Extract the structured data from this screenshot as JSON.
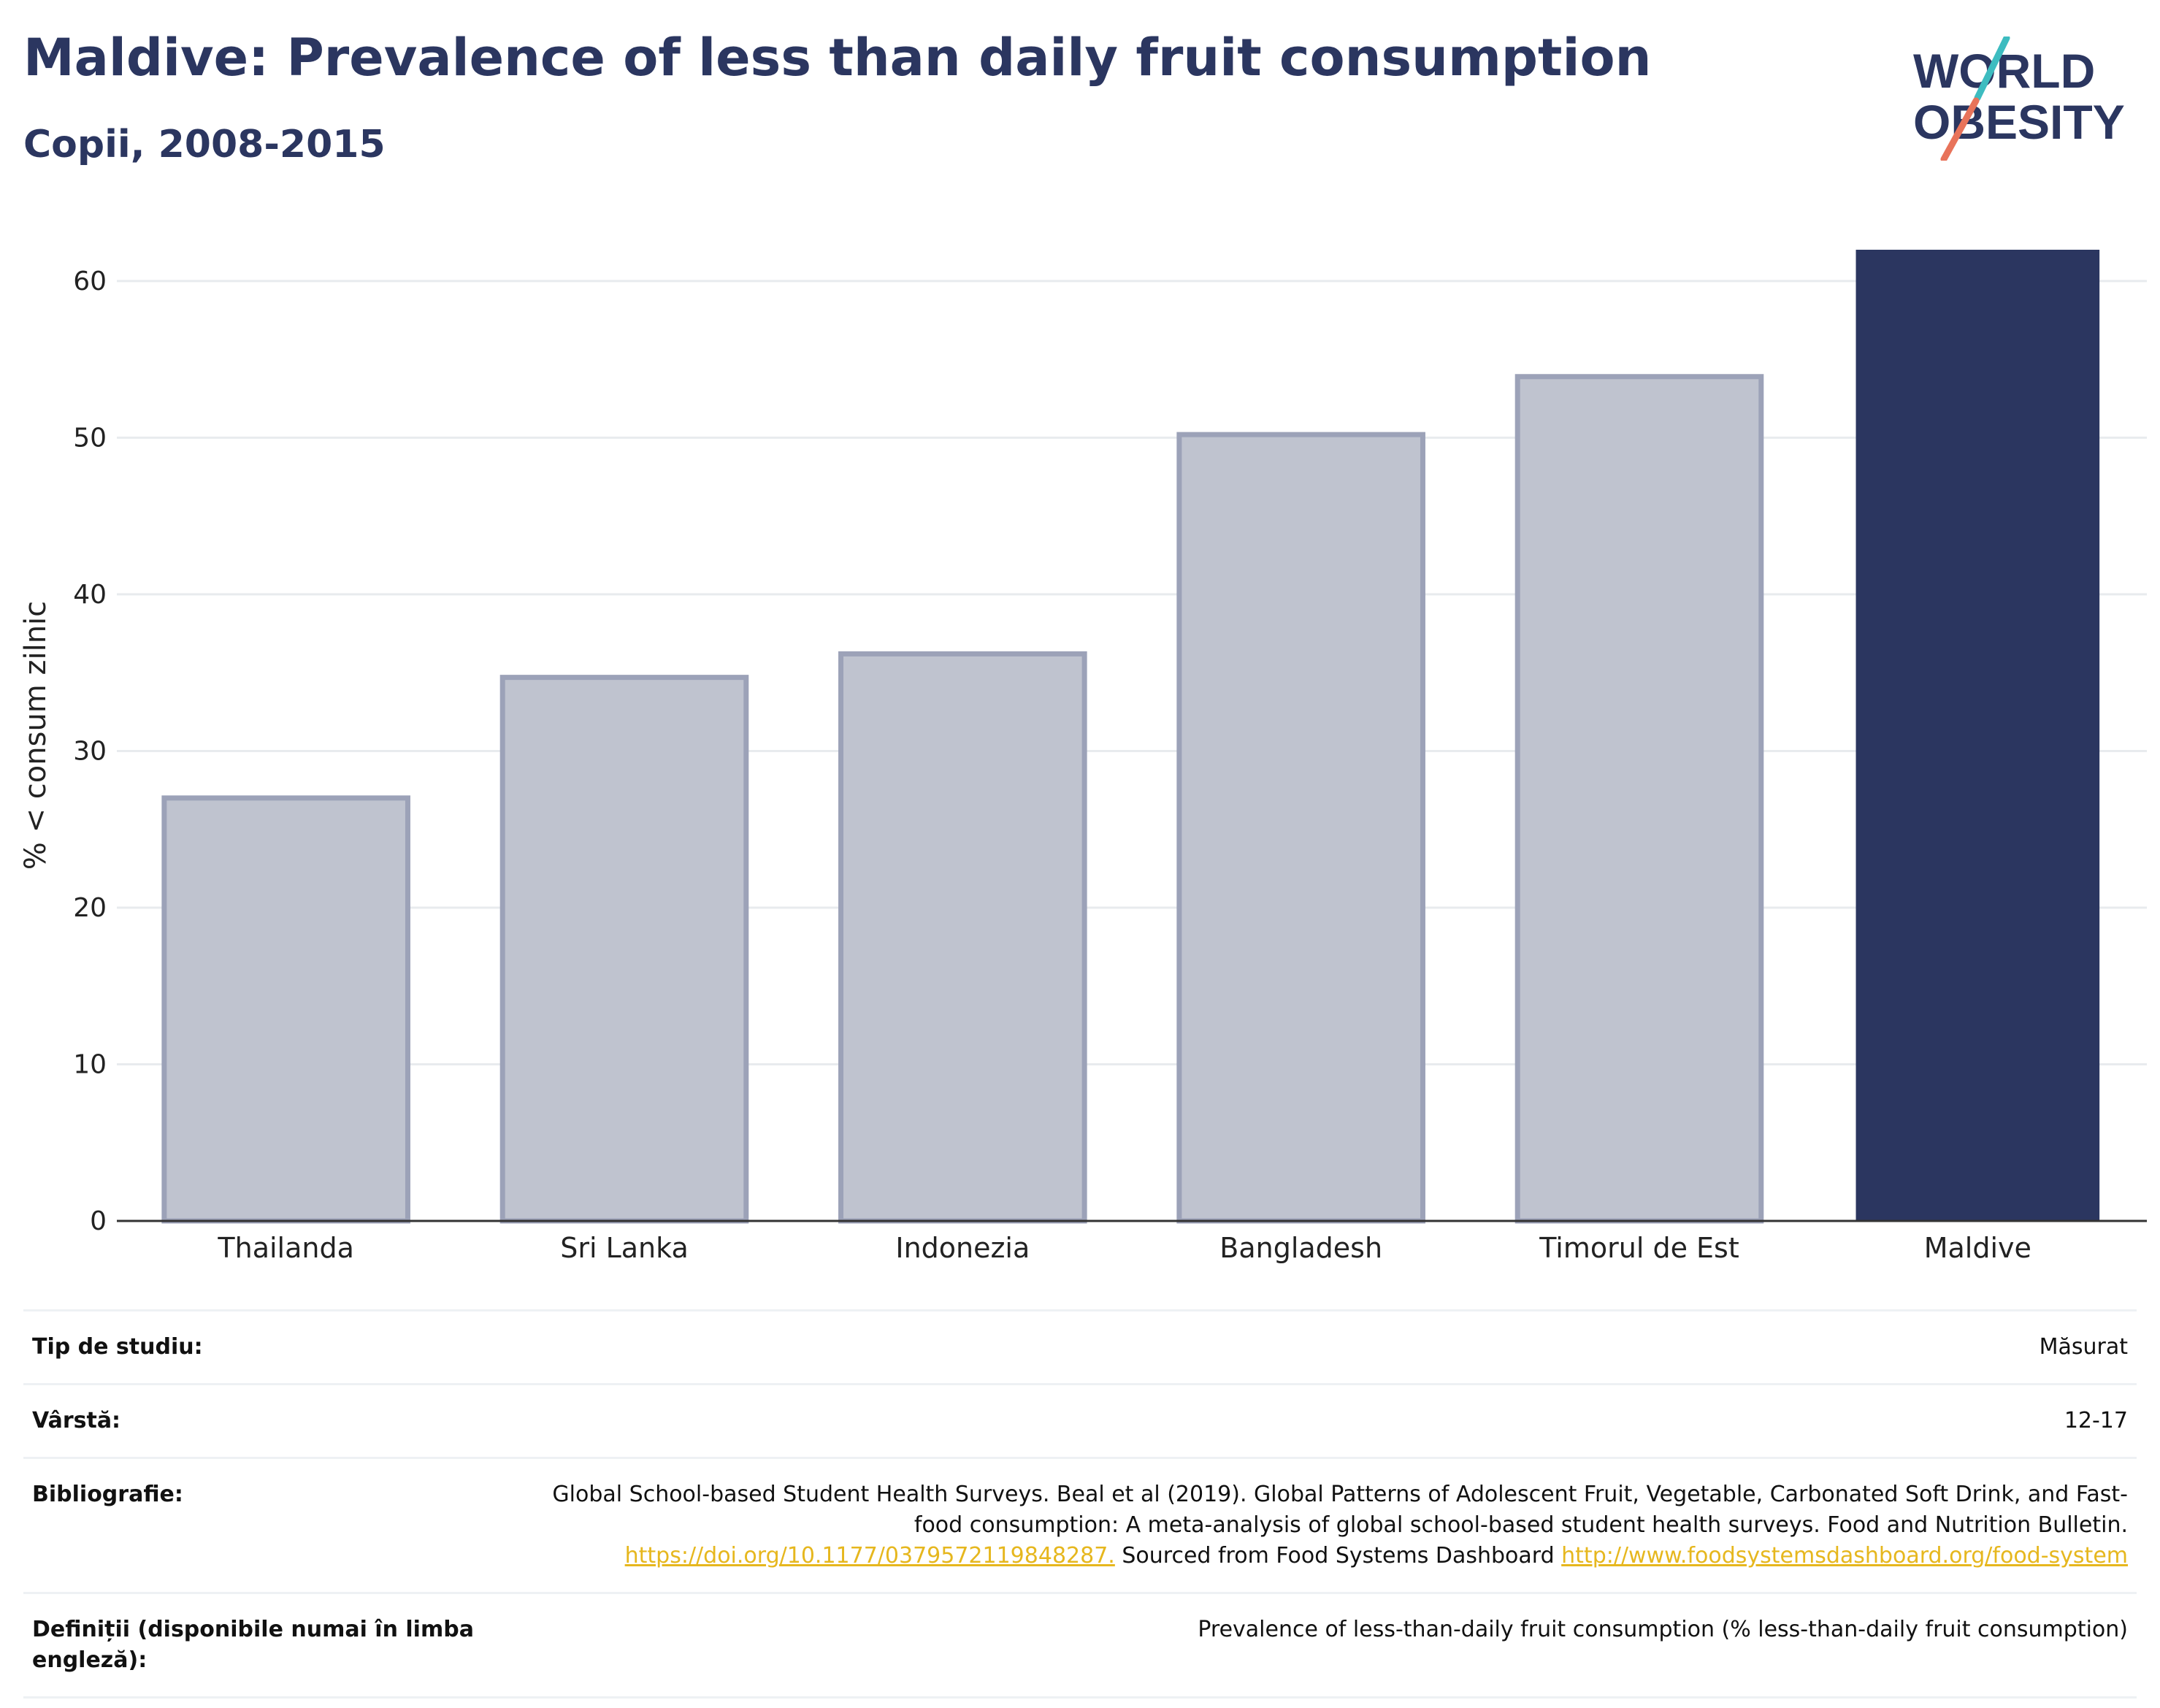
{
  "header": {
    "title": "Maldive: Prevalence of less than daily fruit consumption",
    "subtitle": "Copii, 2008-2015"
  },
  "logo": {
    "text_line1": "WORLD",
    "text_line2": "OBESITY",
    "slash_colors": [
      "#3dbcc0",
      "#e8735a"
    ]
  },
  "chart_data": {
    "type": "bar",
    "categories": [
      "Thailanda",
      "Sri Lanka",
      "Indonezia",
      "Bangladesh",
      "Timorul de Est",
      "Maldive"
    ],
    "values": [
      27.0,
      34.7,
      36.2,
      50.2,
      53.9,
      62.0
    ],
    "highlight": "Maldive",
    "ylabel": "% < consum zilnic",
    "ylim": [
      0,
      62
    ],
    "yticks": [
      0,
      10,
      20,
      30,
      40,
      50,
      60
    ],
    "grid": true,
    "colors": {
      "bar": "#bfc3cf",
      "bar_border": "#9ca2b8",
      "highlight": "#2b3660",
      "grid": "#e8ebee",
      "axis": "#333333"
    }
  },
  "meta": {
    "study_type_label": "Tip de studiu:",
    "study_type_value": "Măsurat",
    "age_label": "Vârstă:",
    "age_value": "12-17",
    "bib_label": "Bibliografie:",
    "bib_text1": "Global School-based Student Health Surveys. Beal et al (2019). Global Patterns of Adolescent Fruit, Vegetable, Carbonated Soft Drink, and Fast-food consumption: A meta-analysis of global school-based student health surveys. Food and Nutrition Bulletin. ",
    "bib_link1": "https://doi.org/10.1177/0379572119848287.",
    "bib_text2": " Sourced from Food Systems Dashboard ",
    "bib_link2": "http://www.foodsystemsdashboard.org/food-system",
    "def_label": "Definiții (disponibile numai în limba engleză):",
    "def_value": "Prevalence of less-than-daily fruit consumption (% less-than-daily fruit consumption)"
  }
}
